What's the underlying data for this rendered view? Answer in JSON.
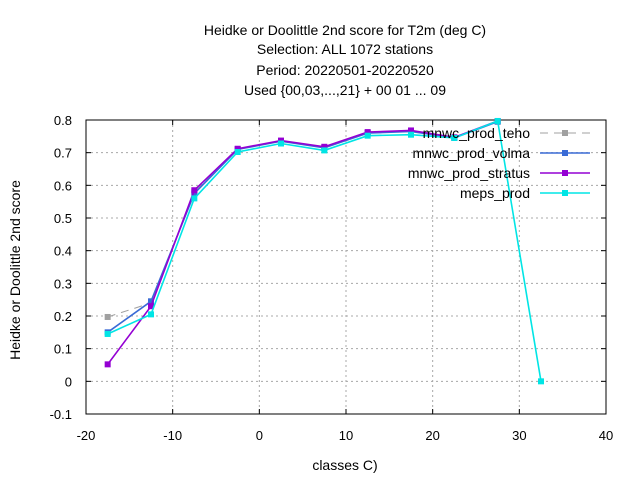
{
  "chart_data": {
    "type": "line",
    "title_lines": [
      "Heidke or Doolittle 2nd score  for T2m (deg C)",
      "Selection: ALL    1072 stations",
      "Period: 20220501-20220520",
      "Used {00,03,...,21} + 00 01 ... 09"
    ],
    "xlabel": "classes C)",
    "ylabel": "Heidke or Doolittle 2nd score",
    "xlim": [
      -20,
      40
    ],
    "ylim": [
      -0.1,
      0.8
    ],
    "x_ticks": [
      "-20",
      "-10",
      "0",
      "10",
      "20",
      "30",
      "40"
    ],
    "y_ticks": [
      "-0.1",
      "0",
      "0.1",
      "0.2",
      "0.3",
      "0.4",
      "0.5",
      "0.6",
      "0.7",
      "0.8"
    ],
    "grid": true,
    "legend_position": "top-right",
    "series": [
      {
        "name": "mnwc_prod_teho",
        "color": "#a0a0a0",
        "dashed": true,
        "x": [
          -17.5,
          -12.5,
          -7.5,
          -2.5,
          2.5,
          7.5,
          12.5,
          17.5,
          22.5,
          27.5
        ],
        "y": [
          0.197,
          0.24,
          0.58,
          0.71,
          0.735,
          0.715,
          0.76,
          0.765,
          0.745,
          0.795
        ]
      },
      {
        "name": "mnwc_prod_volma",
        "color": "#3a6bd6",
        "dashed": false,
        "x": [
          -17.5,
          -12.5,
          -7.5,
          -2.5,
          2.5,
          7.5,
          12.5,
          17.5,
          22.5,
          27.5
        ],
        "y": [
          0.15,
          0.245,
          0.575,
          0.71,
          0.735,
          0.715,
          0.76,
          0.765,
          0.745,
          0.795
        ]
      },
      {
        "name": "mnwc_prod_stratus",
        "color": "#9400d3",
        "dashed": false,
        "x": [
          -17.5,
          -12.5,
          -7.5,
          -2.5,
          2.5,
          7.5,
          12.5,
          17.5,
          22.5,
          27.5
        ],
        "y": [
          0.052,
          0.23,
          0.585,
          0.712,
          0.737,
          0.718,
          0.763,
          0.768,
          0.747,
          0.797
        ]
      },
      {
        "name": "meps_prod",
        "color": "#00e5e5",
        "dashed": false,
        "x": [
          -17.5,
          -12.5,
          -7.5,
          -2.5,
          2.5,
          7.5,
          12.5,
          17.5,
          22.5,
          27.5,
          32.5
        ],
        "y": [
          0.145,
          0.205,
          0.56,
          0.702,
          0.728,
          0.707,
          0.752,
          0.755,
          0.745,
          0.797,
          0.0
        ]
      }
    ]
  }
}
